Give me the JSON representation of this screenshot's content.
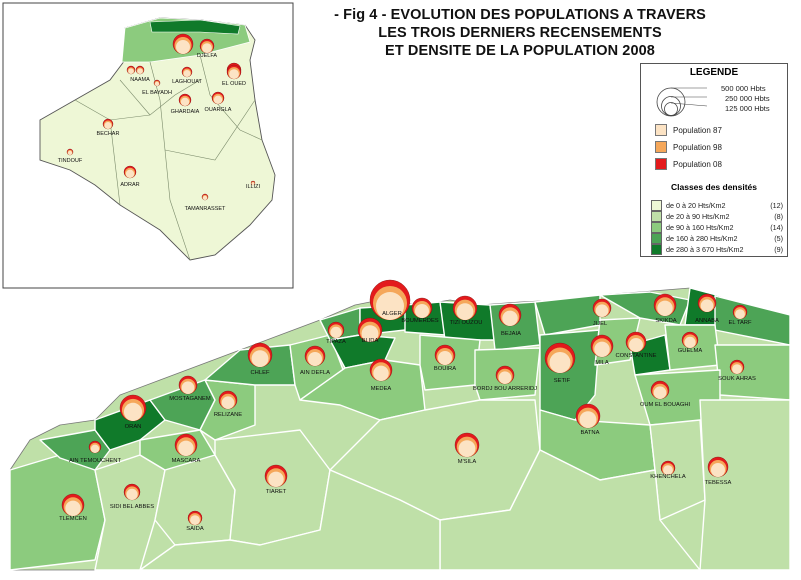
{
  "title": {
    "line1": "- Fig 4 - EVOLUTION DES POPULATIONS A TRAVERS",
    "line2": "LES TROIS DERNIERS RECENSEMENTS",
    "line3": "ET DENSITE DE LA POPULATION 2008"
  },
  "legend": {
    "title": "LEGENDE",
    "sizes": [
      "500 000 Hbts",
      "250 000 Hbts",
      "125 000 Hbts"
    ],
    "populations": [
      {
        "label": "Population 87",
        "color": "#fce3c4"
      },
      {
        "label": "Population 98",
        "color": "#f5a75a"
      },
      {
        "label": "Population 08",
        "color": "#e31a1c"
      }
    ],
    "density_title": "Classes des densités",
    "density_classes": [
      {
        "label": "de 0 à 20 Hts/Km2",
        "count": "(12)",
        "color": "#eef7d6"
      },
      {
        "label": "de 20 à 90 Hts/Km2",
        "count": "(8)",
        "color": "#bfe0a8"
      },
      {
        "label": "de 90 à 160 Hts/Km2",
        "count": "(14)",
        "color": "#8ccb7e"
      },
      {
        "label": "de 160 à 280 Hts/Km2",
        "count": "(5)",
        "color": "#4da456"
      },
      {
        "label": "de 280 à 3 670 Hts/Km2",
        "count": "(9)",
        "color": "#107a2a"
      }
    ]
  },
  "colors": {
    "sea": "#ffffff",
    "border": "#ffffff",
    "outline": "#555555"
  },
  "inset_labels": [
    "DJELFA",
    "NAAMA",
    "LAGHOUAT",
    "EL OUED",
    "EL BAYADH",
    "GHARDAIA",
    "OUARGLA",
    "BECHAR",
    "TINDOUF",
    "ADRAR",
    "ILLIZI",
    "TAMANRASSET"
  ],
  "main_labels": [
    "ALGER",
    "BOUMERDES",
    "TIZI OUZOU",
    "BEJAIA",
    "JIJEL",
    "SKIKDA",
    "ANNABA",
    "EL TARF",
    "TIPAZA",
    "BLIDA",
    "CHLEF",
    "AIN DEFLA",
    "MEDEA",
    "BOUIRA",
    "BORDJ BOU ARRERIDJ",
    "SETIF",
    "MILA",
    "CONSTANTINE",
    "GUELMA",
    "SOUK AHRAS",
    "OUM EL BOUAGHI",
    "BATNA",
    "KHENCHELA",
    "TEBESSA",
    "M'SILA",
    "MOSTAGANEM",
    "RELIZANE",
    "ORAN",
    "AIN TEMOUCHENT",
    "MASCARA",
    "TIARET",
    "TLEMCEN",
    "SIDI BEL ABBES",
    "SAIDA"
  ]
}
